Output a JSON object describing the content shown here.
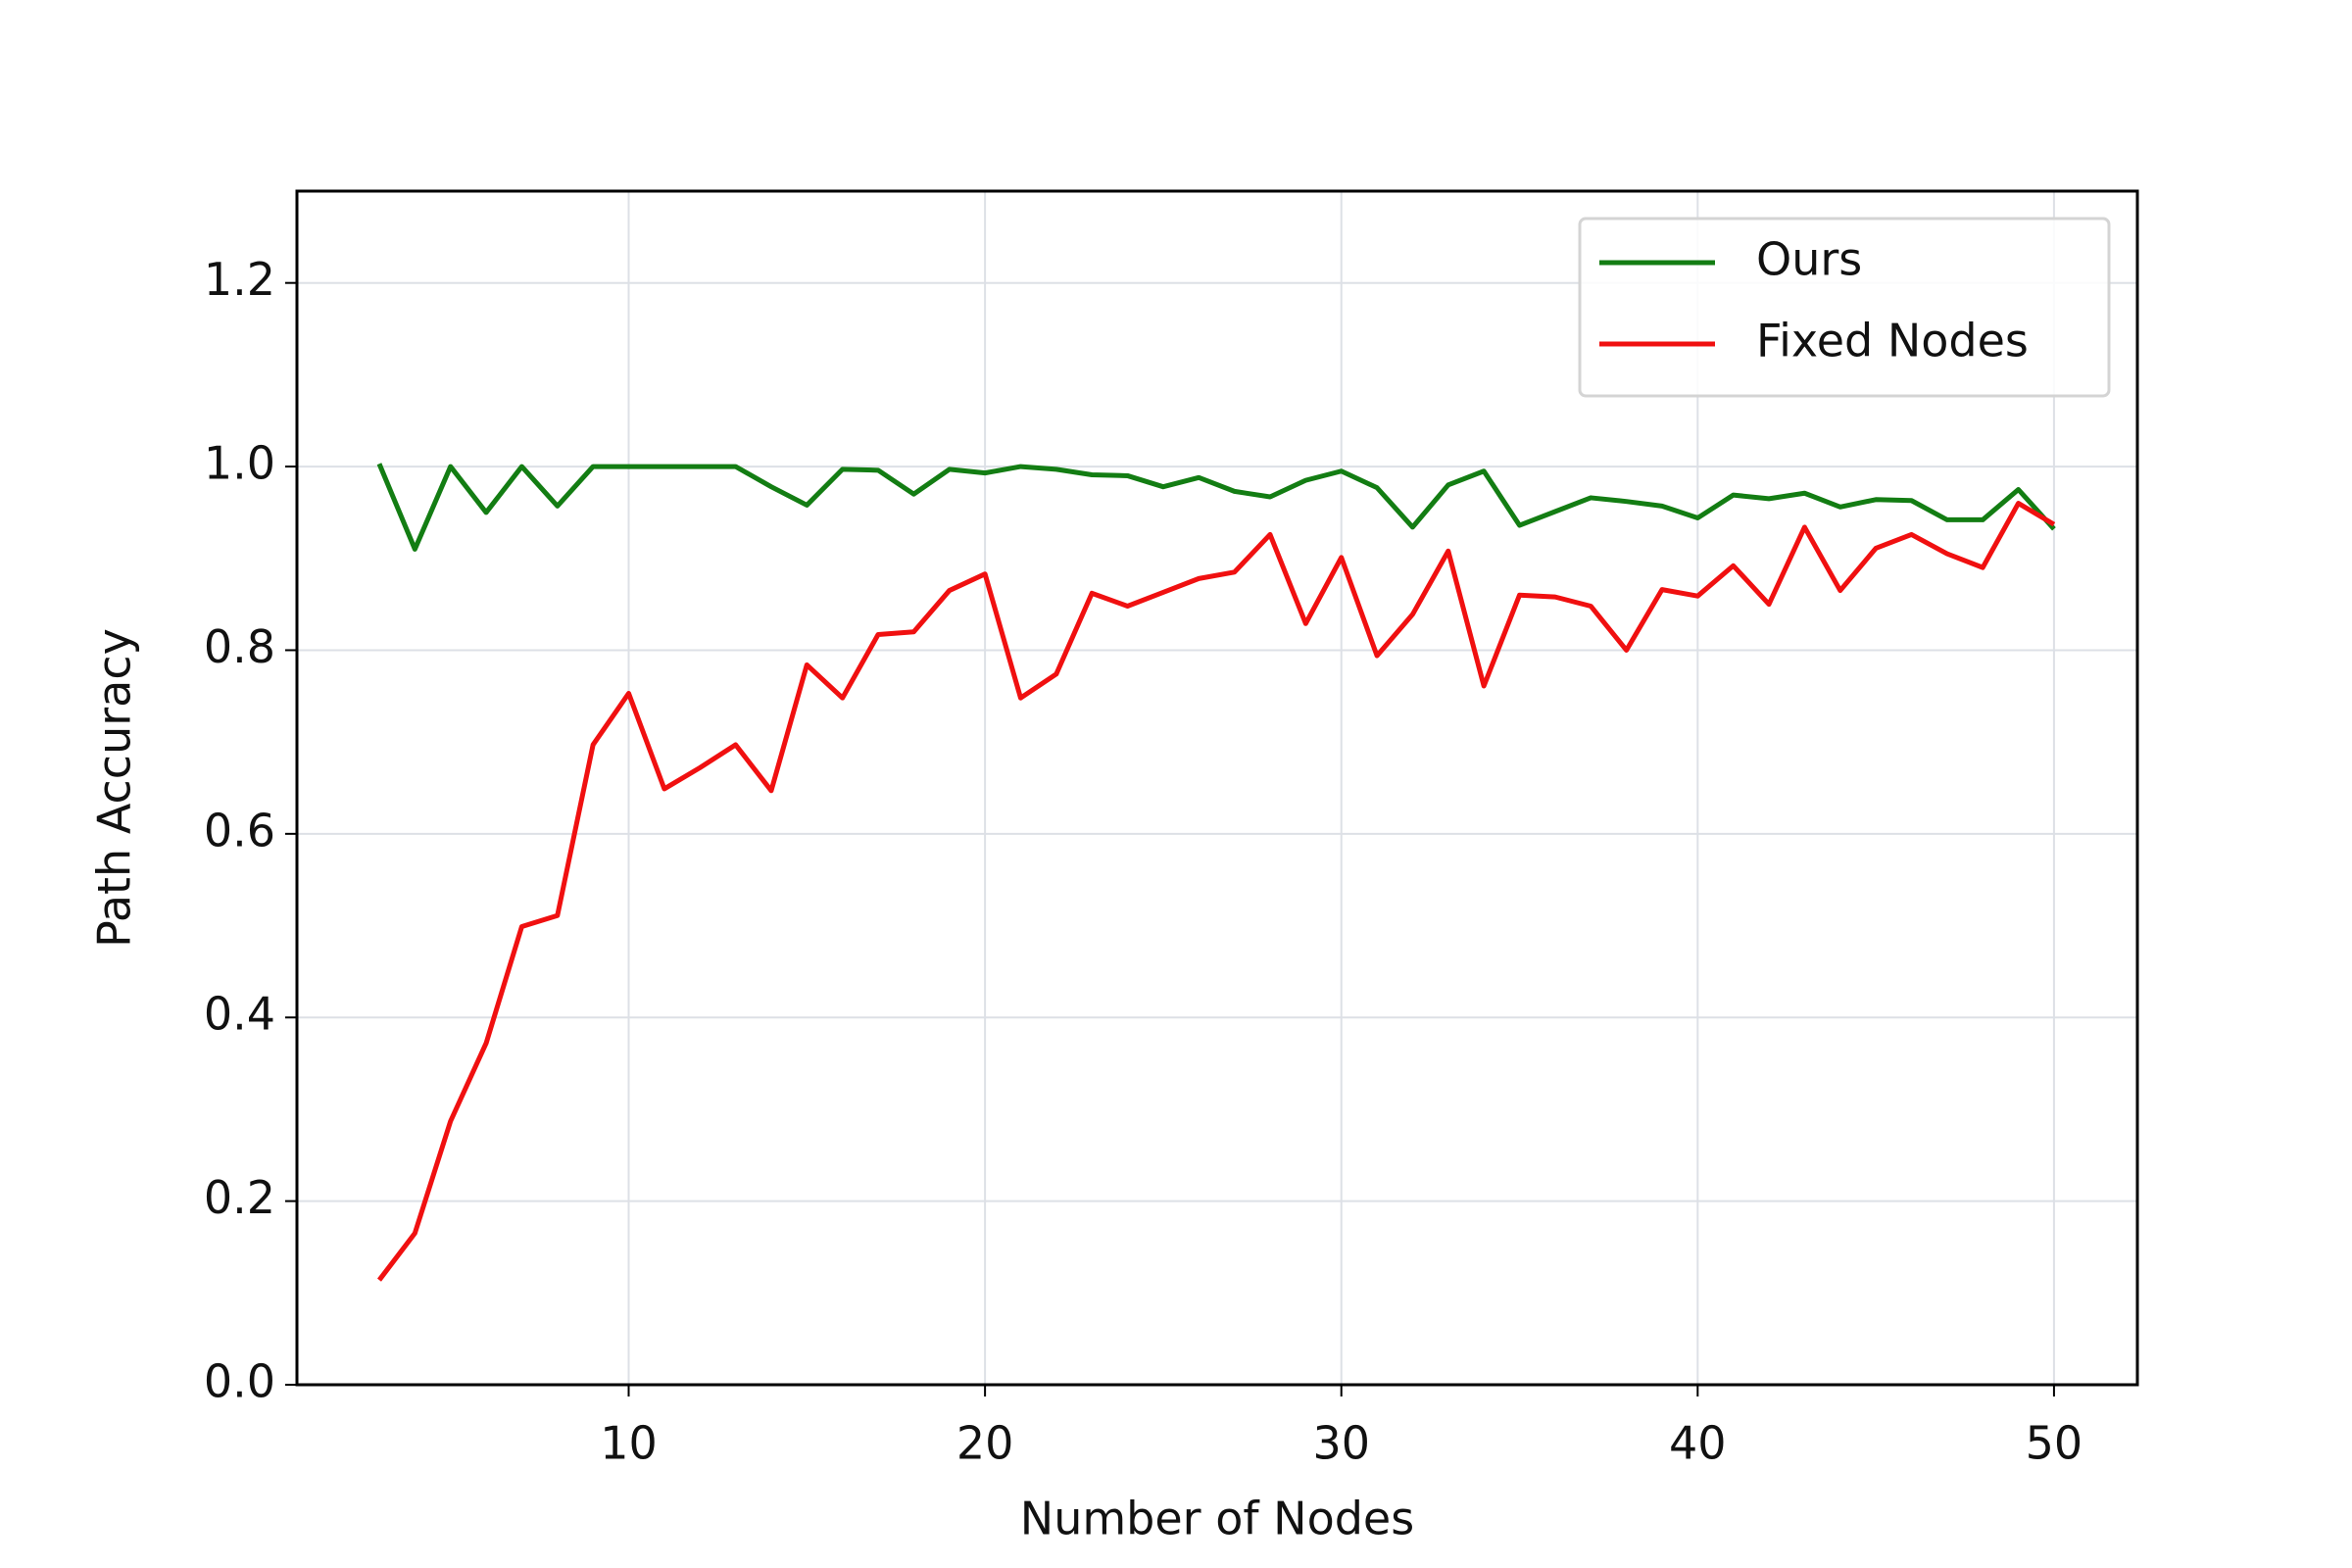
{
  "chart_data": {
    "type": "line",
    "x_label": "Number of Nodes",
    "y_label": "Path Accuracy",
    "x": [
      3,
      4,
      5,
      6,
      7,
      8,
      9,
      10,
      11,
      12,
      13,
      14,
      15,
      16,
      17,
      18,
      19,
      20,
      21,
      22,
      23,
      24,
      25,
      26,
      27,
      28,
      29,
      30,
      31,
      32,
      33,
      34,
      35,
      36,
      37,
      38,
      39,
      40,
      41,
      42,
      43,
      44,
      45,
      46,
      47,
      48,
      49,
      50
    ],
    "series": [
      {
        "name": "Ours",
        "color": "#137d13",
        "values": [
          1.003,
          0.91,
          1.0,
          0.95,
          1.0,
          0.957,
          1.0,
          1.0,
          1.0,
          1.0,
          1.0,
          0.978,
          0.958,
          0.997,
          0.996,
          0.97,
          0.997,
          0.993,
          1.0,
          0.997,
          0.991,
          0.99,
          0.978,
          0.988,
          0.973,
          0.967,
          0.985,
          0.995,
          0.977,
          0.934,
          0.98,
          0.995,
          0.936,
          0.951,
          0.966,
          0.962,
          0.957,
          0.944,
          0.969,
          0.965,
          0.971,
          0.956,
          0.964,
          0.963,
          0.942,
          0.942,
          0.975,
          0.932
        ]
      },
      {
        "name": "Fixed Nodes",
        "color": "#f01010",
        "values": [
          0.114,
          0.165,
          0.287,
          0.372,
          0.499,
          0.511,
          0.697,
          0.753,
          0.649,
          0.672,
          0.697,
          0.647,
          0.784,
          0.748,
          0.817,
          0.82,
          0.865,
          0.883,
          0.748,
          0.774,
          0.862,
          0.848,
          0.863,
          0.878,
          0.885,
          0.926,
          0.829,
          0.901,
          0.794,
          0.839,
          0.908,
          0.761,
          0.86,
          0.858,
          0.848,
          0.8,
          0.866,
          0.859,
          0.892,
          0.85,
          0.934,
          0.865,
          0.911,
          0.926,
          0.905,
          0.89,
          0.96,
          0.937
        ]
      }
    ],
    "xlim": [
      0.69,
      52.34
    ],
    "xticks": [
      10,
      20,
      30,
      40,
      50
    ],
    "ylim": [
      0,
      1.3
    ],
    "yticks": [
      {
        "value": 0,
        "label": "0.0"
      },
      0.2,
      0.4,
      0.6,
      0.8,
      {
        "value": 1,
        "label": "1.0"
      },
      1.2
    ],
    "grid": true,
    "legend": "upper right"
  }
}
